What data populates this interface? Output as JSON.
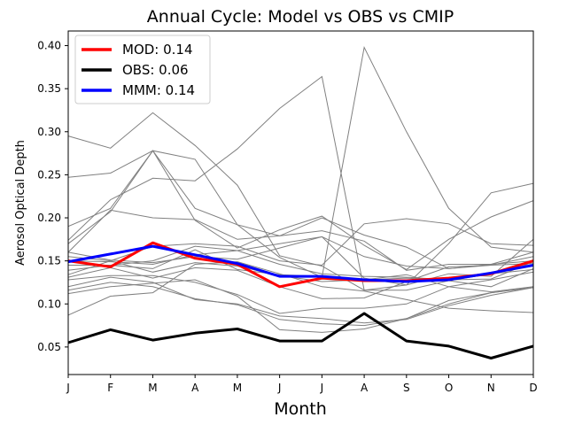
{
  "chart_data": {
    "type": "line",
    "title": "Annual Cycle: Model vs OBS vs CMIP",
    "xlabel": "Month",
    "ylabel": "Aerosol Optical Depth",
    "categories": [
      "J",
      "F",
      "M",
      "A",
      "M",
      "J",
      "J",
      "A",
      "S",
      "O",
      "N",
      "D"
    ],
    "ylim": [
      0.018,
      0.417
    ],
    "yticks": [
      0.05,
      0.1,
      0.15,
      0.2,
      0.25,
      0.3,
      0.35,
      0.4
    ],
    "ytick_labels": [
      "0.05",
      "0.10",
      "0.15",
      "0.20",
      "0.25",
      "0.30",
      "0.35",
      "0.40"
    ],
    "grid": false,
    "legend_position": "upper-left",
    "series": [
      {
        "name": "MOD: 0.14",
        "color": "#ff0000",
        "values": [
          0.15,
          0.143,
          0.171,
          0.153,
          0.146,
          0.12,
          0.13,
          0.127,
          0.127,
          0.13,
          0.135,
          0.15
        ]
      },
      {
        "name": "OBS: 0.06",
        "color": "#000000",
        "values": [
          0.055,
          0.07,
          0.058,
          0.066,
          0.071,
          0.057,
          0.057,
          0.089,
          0.057,
          0.051,
          0.037,
          0.051
        ]
      },
      {
        "name": "MMM: 0.14",
        "color": "#0000ff",
        "values": [
          0.149,
          0.158,
          0.167,
          0.157,
          0.147,
          0.132,
          0.132,
          0.128,
          0.126,
          0.128,
          0.136,
          0.145
        ]
      }
    ],
    "cmip_color": "#808080",
    "cmip_models": [
      [
        0.295,
        0.281,
        0.322,
        0.284,
        0.238,
        0.156,
        0.144,
        0.116,
        0.116,
        0.127,
        0.135,
        0.14
      ],
      [
        0.247,
        0.252,
        0.278,
        0.268,
        0.192,
        0.154,
        0.131,
        0.398,
        0.3,
        0.211,
        0.166,
        0.16
      ],
      [
        0.19,
        0.211,
        0.278,
        0.211,
        0.192,
        0.179,
        0.2,
        0.18,
        0.166,
        0.141,
        0.146,
        0.15
      ],
      [
        0.174,
        0.221,
        0.246,
        0.243,
        0.28,
        0.327,
        0.364,
        0.116,
        0.122,
        0.17,
        0.229,
        0.24
      ],
      [
        0.17,
        0.207,
        0.278,
        0.197,
        0.165,
        0.186,
        0.202,
        0.168,
        0.14,
        0.175,
        0.201,
        0.22
      ],
      [
        0.16,
        0.209,
        0.2,
        0.198,
        0.175,
        0.179,
        0.185,
        0.173,
        0.139,
        0.146,
        0.146,
        0.16
      ],
      [
        0.16,
        0.151,
        0.148,
        0.155,
        0.152,
        0.165,
        0.178,
        0.155,
        0.144,
        0.141,
        0.145,
        0.155
      ],
      [
        0.155,
        0.15,
        0.167,
        0.17,
        0.167,
        0.15,
        0.145,
        0.193,
        0.199,
        0.193,
        0.17,
        0.168
      ],
      [
        0.15,
        0.149,
        0.146,
        0.157,
        0.162,
        0.17,
        0.178,
        0.13,
        0.122,
        0.135,
        0.132,
        0.175
      ],
      [
        0.145,
        0.145,
        0.15,
        0.167,
        0.162,
        0.146,
        0.135,
        0.132,
        0.131,
        0.128,
        0.129,
        0.149
      ],
      [
        0.139,
        0.145,
        0.141,
        0.163,
        0.14,
        0.134,
        0.132,
        0.128,
        0.13,
        0.127,
        0.12,
        0.141
      ],
      [
        0.134,
        0.15,
        0.137,
        0.148,
        0.144,
        0.133,
        0.126,
        0.128,
        0.134,
        0.12,
        0.114,
        0.12
      ],
      [
        0.131,
        0.142,
        0.13,
        0.142,
        0.139,
        0.12,
        0.106,
        0.107,
        0.126,
        0.143,
        0.145,
        0.147
      ],
      [
        0.128,
        0.133,
        0.133,
        0.125,
        0.111,
        0.089,
        0.095,
        0.095,
        0.1,
        0.12,
        0.128,
        0.137
      ],
      [
        0.12,
        0.131,
        0.125,
        0.105,
        0.1,
        0.086,
        0.083,
        0.078,
        0.082,
        0.098,
        0.11,
        0.119
      ],
      [
        0.116,
        0.125,
        0.12,
        0.106,
        0.099,
        0.082,
        0.077,
        0.075,
        0.083,
        0.1,
        0.113,
        0.119
      ],
      [
        0.112,
        0.12,
        0.124,
        0.128,
        0.109,
        0.07,
        0.067,
        0.071,
        0.083,
        0.104,
        0.113,
        0.119
      ],
      [
        0.087,
        0.109,
        0.113,
        0.146,
        0.149,
        0.135,
        0.12,
        0.115,
        0.105,
        0.095,
        0.092,
        0.09
      ]
    ]
  }
}
